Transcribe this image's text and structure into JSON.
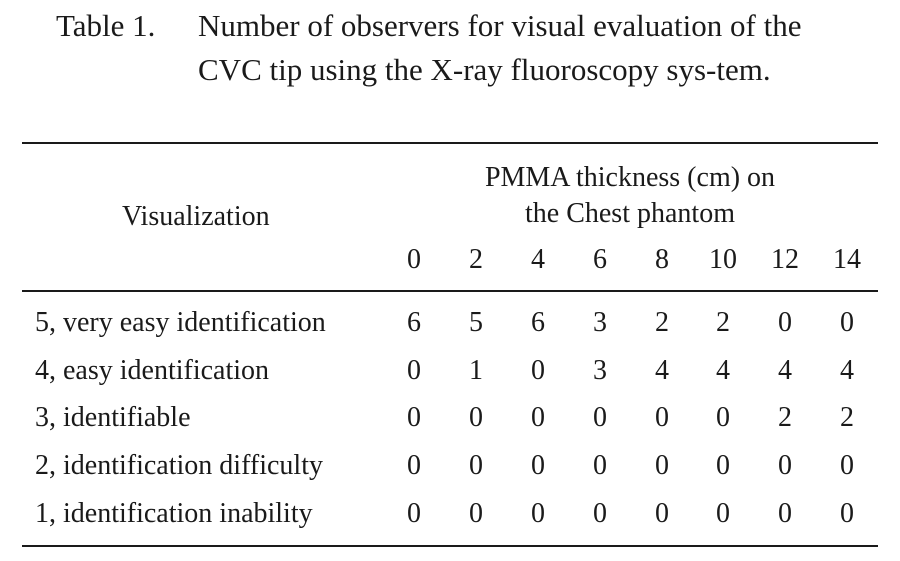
{
  "caption": {
    "label": "Table 1.",
    "text": "Number of observers for visual evaluation of the CVC tip using the X-ray fluoroscopy sys-tem."
  },
  "table": {
    "row_header": "Visualization",
    "column_group_header_line1": "PMMA thickness (cm) on",
    "column_group_header_line2": "the Chest phantom",
    "thicknesses": [
      "0",
      "2",
      "4",
      "6",
      "8",
      "10",
      "12",
      "14"
    ],
    "rows": [
      {
        "label": "5, very easy identification",
        "values": [
          "6",
          "5",
          "6",
          "3",
          "2",
          "2",
          "0",
          "0"
        ]
      },
      {
        "label": "4, easy identification",
        "values": [
          "0",
          "1",
          "0",
          "3",
          "4",
          "4",
          "4",
          "4"
        ]
      },
      {
        "label": "3, identifiable",
        "values": [
          "0",
          "0",
          "0",
          "0",
          "0",
          "0",
          "2",
          "2"
        ]
      },
      {
        "label": "2, identification difficulty",
        "values": [
          "0",
          "0",
          "0",
          "0",
          "0",
          "0",
          "0",
          "0"
        ]
      },
      {
        "label": "1, identification inability",
        "values": [
          "0",
          "0",
          "0",
          "0",
          "0",
          "0",
          "0",
          "0"
        ]
      }
    ]
  }
}
